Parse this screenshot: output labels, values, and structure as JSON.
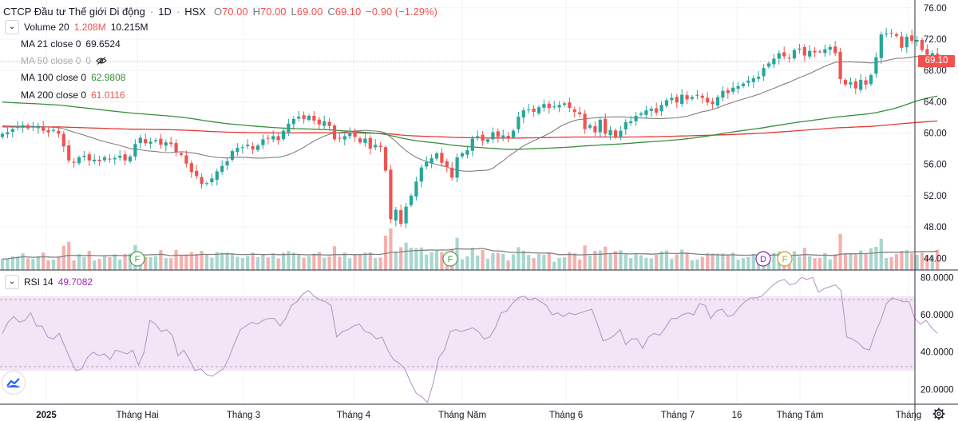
{
  "header": {
    "title": "CTCP Đầu tư Thế giới Di động",
    "interval": "1D",
    "exchange": "HSX",
    "open_label": "O",
    "open": "70.00",
    "high_label": "H",
    "high": "70.00",
    "low_label": "L",
    "low": "69.00",
    "close_label": "C",
    "close": "69.10",
    "change": "−0.90 (−1.29%)"
  },
  "legend": {
    "volume": {
      "label": "Volume 20",
      "value1": "1.208M",
      "value2": "10.215M"
    },
    "ma21": {
      "label": "MA 21 close 0",
      "value": "69.6524"
    },
    "ma50": {
      "label": "MA 50 close 0",
      "value": "0"
    },
    "ma100": {
      "label": "MA 100 close 0",
      "value": "62.9808"
    },
    "ma200": {
      "label": "MA 200 close 0",
      "value": "61.0116"
    },
    "rsi": {
      "label": "RSI 14",
      "value": "49.7082"
    },
    "collapse_icon": "chevron-down-icon",
    "hidden_icon": "eye-off-icon"
  },
  "last_price_tag": "69.10",
  "markers": {
    "f1": "F",
    "f2": "F",
    "d": "D",
    "f3": "F"
  },
  "colors": {
    "up": "#26a69a",
    "down": "#ef5350",
    "vol_up": "#a7d7ce",
    "vol_down": "#f4b0ae",
    "ma21": "#808080",
    "ma100": "#388e3c",
    "ma200": "#e53935",
    "rsi": "#b18fc7",
    "rsi_band": "#f3e5f5"
  },
  "chart_data": [
    {
      "type": "candlestick",
      "title": "CTCP Đầu tư Thế giới Di động · 1D · HSX",
      "x_tick_labels": [
        "2025",
        "Tháng Hai",
        "Tháng 3",
        "Tháng 4",
        "Tháng Năm",
        "Tháng 6",
        "Tháng 7",
        "16",
        "Tháng Tám",
        "Tháng"
      ],
      "y_tick_labels": [
        "76.00",
        "72.00",
        "68.00",
        "64.00",
        "60.00",
        "56.00",
        "52.00",
        "48.00",
        "44.00"
      ],
      "ylim": [
        42.5,
        77
      ],
      "close": [
        59.9,
        60.1,
        60.5,
        60.8,
        61.0,
        60.6,
        60.8,
        60.9,
        60.3,
        60.1,
        60.4,
        59.9,
        58.3,
        56.5,
        56.2,
        56.9,
        57.1,
        56.5,
        56.6,
        56.4,
        56.9,
        56.7,
        56.8,
        57.1,
        56.5,
        57.0,
        58.6,
        59.4,
        58.7,
        58.9,
        59.1,
        58.5,
        58.8,
        58.6,
        57.6,
        57.2,
        56.1,
        55.0,
        54.5,
        53.5,
        53.6,
        54.2,
        55.1,
        55.8,
        56.4,
        57.7,
        58.1,
        58.2,
        58.5,
        57.9,
        58.4,
        59.2,
        59.3,
        59.6,
        59.1,
        60.3,
        61.2,
        61.8,
        62.1,
        61.8,
        62.2,
        61.6,
        61.1,
        61.5,
        60.9,
        59.2,
        59.3,
        59.6,
        60.0,
        59.5,
        58.8,
        59.3,
        58.0,
        58.5,
        58.2,
        55.2,
        49.0,
        50.2,
        48.4,
        50.6,
        52.0,
        53.8,
        55.6,
        56.3,
        56.8,
        57.4,
        56.2,
        55.7,
        54.3,
        56.9,
        57.4,
        57.8,
        59.3,
        59.6,
        59.0,
        59.2,
        60.1,
        59.5,
        59.7,
        59.4,
        60.3,
        62.1,
        62.9,
        63.0,
        62.7,
        63.3,
        63.7,
        63.2,
        63.4,
        63.6,
        63.8,
        63.2,
        62.7,
        62.4,
        60.5,
        61.0,
        60.1,
        61.7,
        59.9,
        60.4,
        59.5,
        60.3,
        61.4,
        61.5,
        62.2,
        62.5,
        62.9,
        63.1,
        62.6,
        63.6,
        64.2,
        64.5,
        63.9,
        64.9,
        64.3,
        64.6,
        64.9,
        64.5,
        63.9,
        63.7,
        64.6,
        65.4,
        65.1,
        65.8,
        66.0,
        66.3,
        66.7,
        67.0,
        67.2,
        68.3,
        68.9,
        69.5,
        70.2,
        69.8,
        69.6,
        70.6,
        70.8,
        69.9,
        70.5,
        70.3,
        70.4,
        70.7,
        71.0,
        70.2,
        66.9,
        66.2,
        66.5,
        65.7,
        66.8,
        66.2,
        67.4,
        69.7,
        72.6,
        72.7,
        72.8,
        72.4,
        70.9,
        72.3,
        71.8,
        71.9,
        70.6,
        70.0,
        70.2,
        69.1
      ]
    },
    {
      "type": "line",
      "series_names": [
        "RSI 14"
      ],
      "y_tick_labels": [
        "80.0000",
        "60.0000",
        "40.0000",
        "20.0000"
      ],
      "ylim": [
        12,
        84
      ],
      "band": [
        30,
        70
      ],
      "values": [
        50,
        56,
        59,
        56,
        57,
        61,
        54,
        54,
        48,
        47,
        50,
        43,
        36,
        30,
        31,
        37,
        40,
        38,
        39,
        36,
        41,
        40,
        39,
        41,
        33,
        40,
        57,
        55,
        51,
        52,
        49,
        38,
        41,
        36,
        30,
        31,
        28,
        27,
        29,
        31,
        37,
        45,
        52,
        54,
        56,
        55,
        57,
        58,
        58,
        54,
        58,
        65,
        67,
        71,
        73,
        70,
        68,
        67,
        65,
        48,
        51,
        52,
        54,
        55,
        51,
        50,
        47,
        48,
        41,
        36,
        34,
        31,
        24,
        18,
        16,
        13,
        23,
        37,
        41,
        51,
        52,
        51,
        52,
        53,
        51,
        47,
        48,
        53,
        61,
        62,
        66,
        69,
        70,
        68,
        69,
        67,
        65,
        60,
        61,
        59,
        61,
        60,
        61,
        62,
        63,
        55,
        46,
        47,
        49,
        52,
        44,
        47,
        47,
        42,
        48,
        50,
        49,
        53,
        58,
        58,
        60,
        61,
        60,
        66,
        65,
        58,
        62,
        63,
        59,
        60,
        64,
        67,
        69,
        69,
        70,
        73,
        76,
        78,
        79,
        76,
        77,
        80,
        79,
        80,
        72,
        74,
        75,
        76,
        73,
        48,
        47,
        45,
        42,
        41,
        50,
        57,
        66,
        69,
        68,
        67,
        67,
        58,
        55,
        57,
        53,
        50
      ]
    }
  ]
}
